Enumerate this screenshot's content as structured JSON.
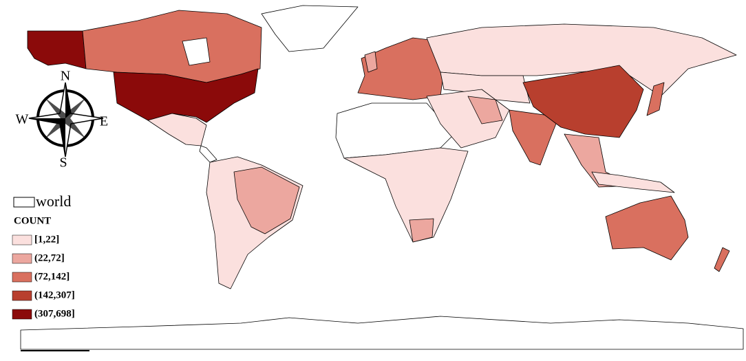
{
  "compass": {
    "north": "N",
    "east": "E",
    "south": "S",
    "west": "W"
  },
  "legend": {
    "layer": "world",
    "title": "COUNT",
    "classes": [
      {
        "label": "[1,22]",
        "color": "#fbe0de"
      },
      {
        "label": "(22,72]",
        "color": "#eca79f"
      },
      {
        "label": "(72,142]",
        "color": "#d9705f"
      },
      {
        "label": "(142,307]",
        "color": "#b83f2e"
      },
      {
        "label": "(307,698]",
        "color": "#8b0a0a"
      }
    ]
  }
}
